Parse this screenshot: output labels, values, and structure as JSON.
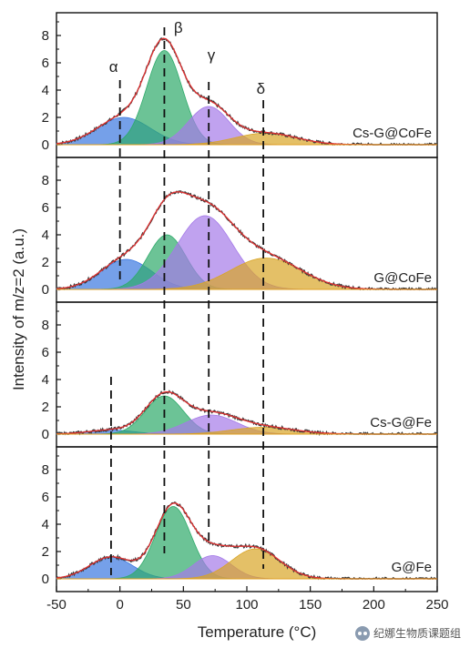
{
  "chart_data": {
    "type": "area",
    "xlabel": "Temperature (°C)",
    "ylabel": "Intensity of m/z=2 (a.u.)",
    "xlim": [
      -50,
      250
    ],
    "x_ticks": [
      -50,
      0,
      50,
      100,
      150,
      200,
      250
    ],
    "y_ticks": [
      0,
      2,
      4,
      6,
      8
    ],
    "ylim": [
      0,
      9
    ],
    "component_colors": {
      "alpha": "#3a78e0",
      "beta": "#2eaa6a",
      "gamma": "#a57ae8",
      "delta": "#d9a526"
    },
    "fit_color": "#e03030",
    "data_color": "#3a3a3a",
    "peak_labels": [
      "α",
      "β",
      "γ",
      "δ"
    ],
    "reference_lines_x": [
      0,
      35,
      70,
      113,
      -7
    ],
    "panels": [
      {
        "label": "Cs-G@CoFe",
        "peaks": [
          {
            "name": "α",
            "center": 3,
            "height": 2.0,
            "width": 21
          },
          {
            "name": "β",
            "center": 35,
            "height": 6.9,
            "width": 14
          },
          {
            "name": "γ",
            "center": 70,
            "height": 2.8,
            "width": 16
          },
          {
            "name": "δ",
            "center": 115,
            "height": 0.85,
            "width": 24
          }
        ],
        "max": 8.0
      },
      {
        "label": "G@CoFe",
        "peaks": [
          {
            "name": "α",
            "center": 5,
            "height": 2.2,
            "width": 20
          },
          {
            "name": "β",
            "center": 37,
            "height": 4.0,
            "width": 15
          },
          {
            "name": "γ",
            "center": 67,
            "height": 5.4,
            "width": 22
          },
          {
            "name": "δ",
            "center": 115,
            "height": 2.3,
            "width": 28
          }
        ],
        "max": 7.6
      },
      {
        "label": "Cs-G@Fe",
        "peaks": [
          {
            "name": "α",
            "center": -7,
            "height": 0.3,
            "width": 18
          },
          {
            "name": "β",
            "center": 35,
            "height": 2.8,
            "width": 15
          },
          {
            "name": "γ",
            "center": 72,
            "height": 1.4,
            "width": 20
          },
          {
            "name": "δ",
            "center": 113,
            "height": 0.5,
            "width": 25
          }
        ],
        "max": 3.0
      },
      {
        "label": "G@Fe",
        "peaks": [
          {
            "name": "α",
            "center": -7,
            "height": 1.6,
            "width": 17
          },
          {
            "name": "β",
            "center": 42,
            "height": 5.3,
            "width": 14
          },
          {
            "name": "γ",
            "center": 73,
            "height": 1.7,
            "width": 15
          },
          {
            "name": "δ",
            "center": 107,
            "height": 2.2,
            "width": 19
          }
        ],
        "max": 5.8
      }
    ]
  },
  "watermark": {
    "text": "纪娜生物质课题组",
    "icon": "wechat-icon"
  }
}
